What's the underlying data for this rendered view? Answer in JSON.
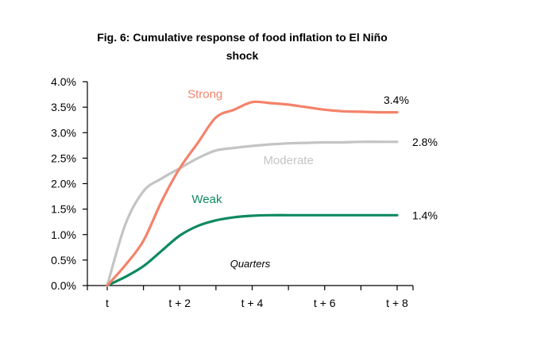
{
  "chart_data": {
    "type": "line",
    "title_lines": [
      "Fig. 6: Cumulative response of food inflation to El Niño",
      "shock"
    ],
    "xlabel": "",
    "ylabel": "",
    "x": [
      0,
      0.5,
      1,
      1.5,
      2,
      2.5,
      3,
      3.5,
      4,
      4.5,
      5,
      5.5,
      6,
      6.5,
      7,
      7.5,
      8
    ],
    "x_ticks": [
      0,
      2,
      4,
      6,
      8
    ],
    "x_tick_labels": [
      "t",
      "t + 2",
      "t + 4",
      "t + 6",
      "t + 8"
    ],
    "ylim": [
      0,
      4
    ],
    "y_ticks": [
      0,
      0.5,
      1,
      1.5,
      2,
      2.5,
      3,
      3.5,
      4
    ],
    "y_tick_labels": [
      "0.0%",
      "0.5%",
      "1.0%",
      "1.5%",
      "2.0%",
      "2.5%",
      "3.0%",
      "3.5%",
      "4.0%"
    ],
    "grid": false,
    "series": [
      {
        "name": "Strong",
        "color": "#F4826A",
        "values": [
          0,
          0.4,
          0.88,
          1.65,
          2.3,
          2.8,
          3.3,
          3.45,
          3.6,
          3.58,
          3.55,
          3.5,
          3.45,
          3.42,
          3.41,
          3.4,
          3.4
        ],
        "end_label": "3.4%"
      },
      {
        "name": "Moderate",
        "color": "#C4C4C4",
        "values": [
          0,
          1.2,
          1.85,
          2.1,
          2.3,
          2.5,
          2.65,
          2.7,
          2.74,
          2.77,
          2.79,
          2.8,
          2.81,
          2.81,
          2.82,
          2.82,
          2.82
        ],
        "end_label": "2.8%"
      },
      {
        "name": "Weak",
        "color": "#0E8A5F",
        "values": [
          0,
          0.17,
          0.38,
          0.68,
          0.98,
          1.17,
          1.28,
          1.34,
          1.37,
          1.38,
          1.38,
          1.38,
          1.38,
          1.38,
          1.38,
          1.38,
          1.38
        ],
        "end_label": "1.4%"
      }
    ],
    "annotation": "Quarters"
  }
}
